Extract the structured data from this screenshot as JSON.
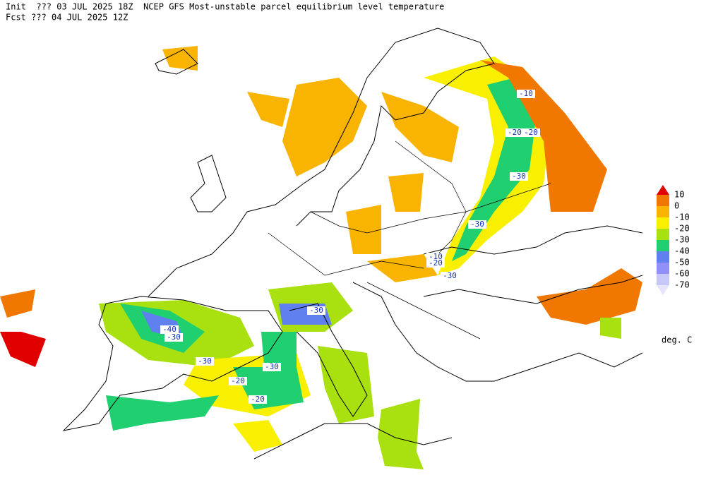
{
  "header": {
    "line1": "Init  ??? 03 JUL 2025 18Z  NCEP GFS Most-unstable parcel equilibrium level temperature",
    "line2": "Fcst ??? 04 JUL 2025 12Z"
  },
  "legend": {
    "labels": [
      "10",
      "0",
      "-10",
      "-20",
      "-30",
      "-40",
      "-50",
      "-60",
      "-70"
    ],
    "colors": [
      "#e00000",
      "#f07800",
      "#f8b400",
      "#f8f000",
      "#a8e010",
      "#20d070",
      "#6080f0",
      "#9090f8",
      "#c8c8f8",
      "#e4e4fa"
    ],
    "unit": "deg. C"
  },
  "contour_labels": [
    "-10",
    "-20",
    "-20",
    "-30",
    "-30",
    "-10",
    "-20",
    "-30",
    "-30",
    "-40",
    "-30",
    "-30",
    "-30",
    "-20",
    "-20"
  ]
}
